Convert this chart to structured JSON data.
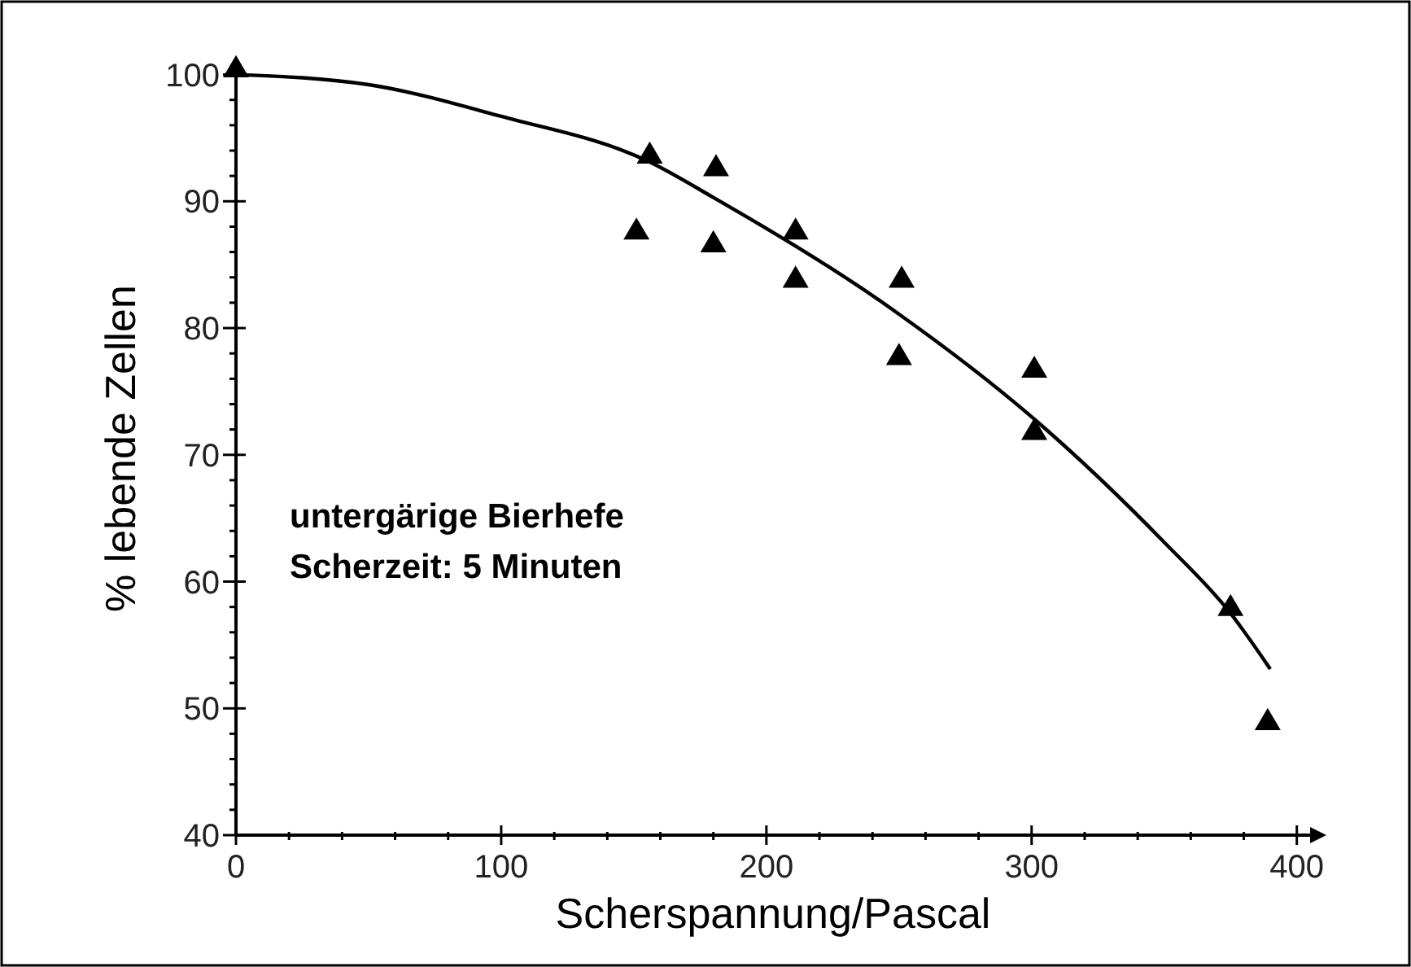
{
  "chart_data": {
    "type": "scatter",
    "xlabel": "Scherspannung/Pascal",
    "ylabel": "% lebende Zellen",
    "annotations": [
      "untergärige Bierhefe",
      "Scherzeit: 5 Minuten"
    ],
    "xlim": [
      0,
      405
    ],
    "ylim": [
      40,
      101
    ],
    "xticks": [
      0,
      {
        "value": 20,
        "label": null
      },
      {
        "value": 40,
        "label": null
      },
      {
        "value": 60,
        "label": null
      },
      {
        "value": 80,
        "label": null
      },
      100,
      {
        "value": 120,
        "label": null
      },
      {
        "value": 140,
        "label": null
      },
      {
        "value": 160,
        "label": null
      },
      {
        "value": 180,
        "label": null
      },
      200,
      {
        "value": 220,
        "label": null
      },
      {
        "value": 240,
        "label": null
      },
      {
        "value": 260,
        "label": null
      },
      {
        "value": 280,
        "label": null
      },
      300,
      {
        "value": 320,
        "label": null
      },
      {
        "value": 340,
        "label": null
      },
      {
        "value": 360,
        "label": null
      },
      {
        "value": 380,
        "label": null
      },
      400
    ],
    "yticks": [
      40,
      {
        "value": 42,
        "label": null
      },
      {
        "value": 44,
        "label": null
      },
      {
        "value": 46,
        "label": null
      },
      {
        "value": 48,
        "label": null
      },
      50,
      {
        "value": 52,
        "label": null
      },
      {
        "value": 54,
        "label": null
      },
      {
        "value": 56,
        "label": null
      },
      {
        "value": 58,
        "label": null
      },
      60,
      {
        "value": 62,
        "label": null
      },
      {
        "value": 64,
        "label": null
      },
      {
        "value": 66,
        "label": null
      },
      {
        "value": 68,
        "label": null
      },
      70,
      {
        "value": 72,
        "label": null
      },
      {
        "value": 74,
        "label": null
      },
      {
        "value": 76,
        "label": null
      },
      {
        "value": 78,
        "label": null
      },
      80,
      {
        "value": 82,
        "label": null
      },
      {
        "value": 84,
        "label": null
      },
      {
        "value": 86,
        "label": null
      },
      {
        "value": 88,
        "label": null
      },
      90,
      {
        "value": 92,
        "label": null
      },
      {
        "value": 94,
        "label": null
      },
      {
        "value": 96,
        "label": null
      },
      {
        "value": 98,
        "label": null
      },
      100
    ],
    "grid": false,
    "marker": "triangle",
    "series": [
      {
        "color": "#000000",
        "x": [
          0,
          156,
          151,
          181,
          180,
          211,
          211,
          251,
          250,
          301,
          301,
          375,
          389
        ],
        "values": [
          100.5,
          93.7,
          87.7,
          92.7,
          86.7,
          87.7,
          83.9,
          83.9,
          77.8,
          76.8,
          71.9,
          58.0,
          49.0
        ]
      },
      {
        "type": "line",
        "color": "#000000",
        "marker": "none",
        "line_style": "solid",
        "x": [
          0,
          50,
          100,
          156,
          180,
          250,
          300,
          350,
          375,
          390
        ],
        "values": [
          100,
          99.2,
          96.7,
          93.1,
          90.3,
          81.1,
          73.0,
          63.1,
          57.5,
          53.1
        ]
      }
    ]
  }
}
